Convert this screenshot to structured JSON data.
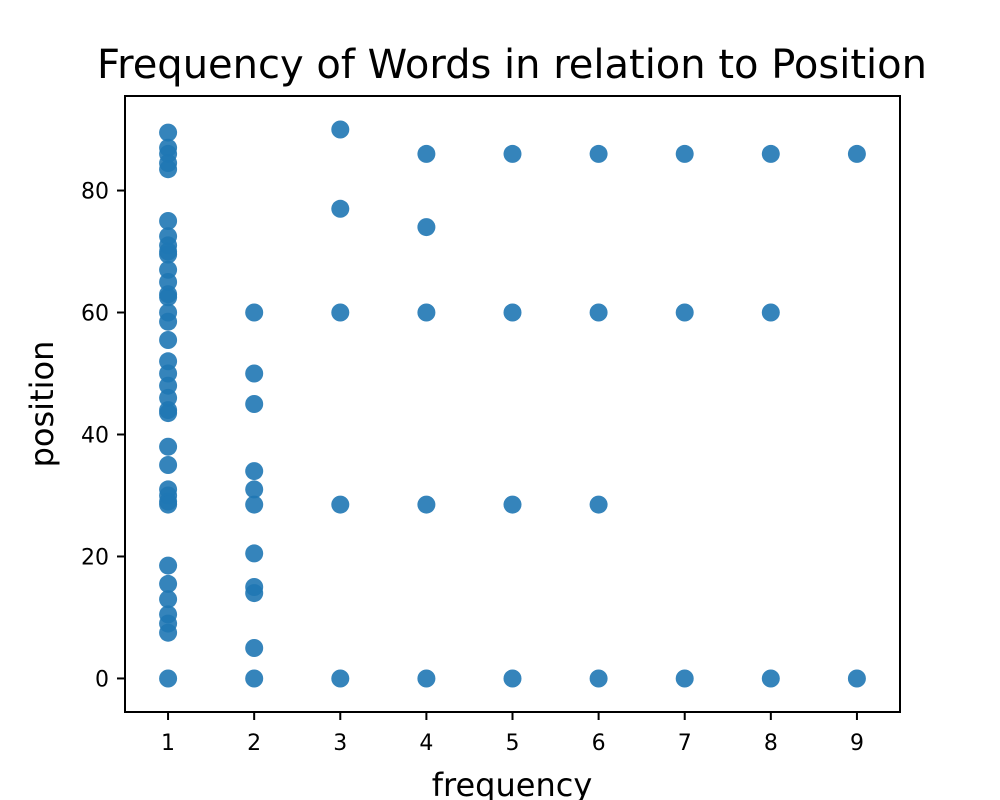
{
  "chart_data": {
    "type": "scatter",
    "title": "Frequency of Words in relation to Position",
    "xlabel": "frequency",
    "ylabel": "position",
    "xlim": [
      0.5,
      9.5
    ],
    "ylim": [
      -5.5,
      95.5
    ],
    "xticks": [
      1,
      2,
      3,
      4,
      5,
      6,
      7,
      8,
      9
    ],
    "yticks": [
      0,
      20,
      40,
      60,
      80
    ],
    "grid": false,
    "marker_color": "#1f77b4",
    "points": [
      [
        1,
        89.5
      ],
      [
        1,
        87
      ],
      [
        1,
        86
      ],
      [
        1,
        84.5
      ],
      [
        1,
        83.5
      ],
      [
        1,
        75
      ],
      [
        1,
        72.5
      ],
      [
        1,
        71
      ],
      [
        1,
        70
      ],
      [
        1,
        69.5
      ],
      [
        1,
        67
      ],
      [
        1,
        65
      ],
      [
        1,
        63
      ],
      [
        1,
        62.5
      ],
      [
        1,
        60
      ],
      [
        1,
        58.5
      ],
      [
        1,
        55.5
      ],
      [
        1,
        52
      ],
      [
        1,
        50
      ],
      [
        1,
        48
      ],
      [
        1,
        46
      ],
      [
        1,
        44
      ],
      [
        1,
        43.5
      ],
      [
        1,
        38
      ],
      [
        1,
        35
      ],
      [
        1,
        31
      ],
      [
        1,
        30
      ],
      [
        1,
        29
      ],
      [
        1,
        28.5
      ],
      [
        1,
        18.5
      ],
      [
        1,
        15.5
      ],
      [
        1,
        13
      ],
      [
        1,
        10.5
      ],
      [
        1,
        9
      ],
      [
        1,
        7.5
      ],
      [
        1,
        0
      ],
      [
        2,
        60
      ],
      [
        2,
        50
      ],
      [
        2,
        45
      ],
      [
        2,
        34
      ],
      [
        2,
        31
      ],
      [
        2,
        28.5
      ],
      [
        2,
        20.5
      ],
      [
        2,
        15
      ],
      [
        2,
        14
      ],
      [
        2,
        5
      ],
      [
        2,
        0
      ],
      [
        3,
        90
      ],
      [
        3,
        77
      ],
      [
        3,
        60
      ],
      [
        3,
        28.5
      ],
      [
        3,
        0
      ],
      [
        4,
        86
      ],
      [
        4,
        74
      ],
      [
        4,
        60
      ],
      [
        4,
        28.5
      ],
      [
        4,
        0
      ],
      [
        5,
        86
      ],
      [
        5,
        60
      ],
      [
        5,
        28.5
      ],
      [
        5,
        0
      ],
      [
        6,
        86
      ],
      [
        6,
        60
      ],
      [
        6,
        28.5
      ],
      [
        6,
        0
      ],
      [
        7,
        86
      ],
      [
        7,
        60
      ],
      [
        7,
        0
      ],
      [
        8,
        86
      ],
      [
        8,
        60
      ],
      [
        8,
        0
      ],
      [
        9,
        86
      ],
      [
        9,
        0
      ]
    ]
  }
}
